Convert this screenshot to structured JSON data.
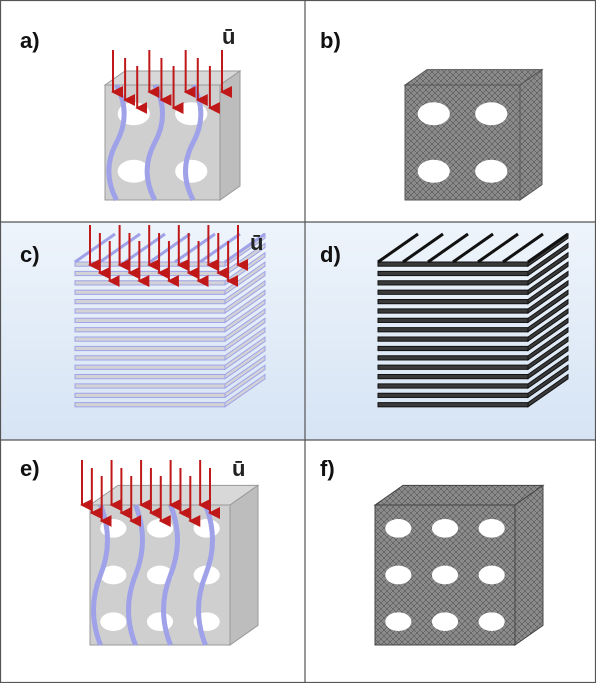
{
  "panels": [
    {
      "label": "a)",
      "load_label": "ū"
    },
    {
      "label": "b)"
    },
    {
      "label": "c)",
      "load_label": "ū"
    },
    {
      "label": "d)"
    },
    {
      "label": "e)",
      "load_label": "ū"
    },
    {
      "label": "f)"
    }
  ]
}
